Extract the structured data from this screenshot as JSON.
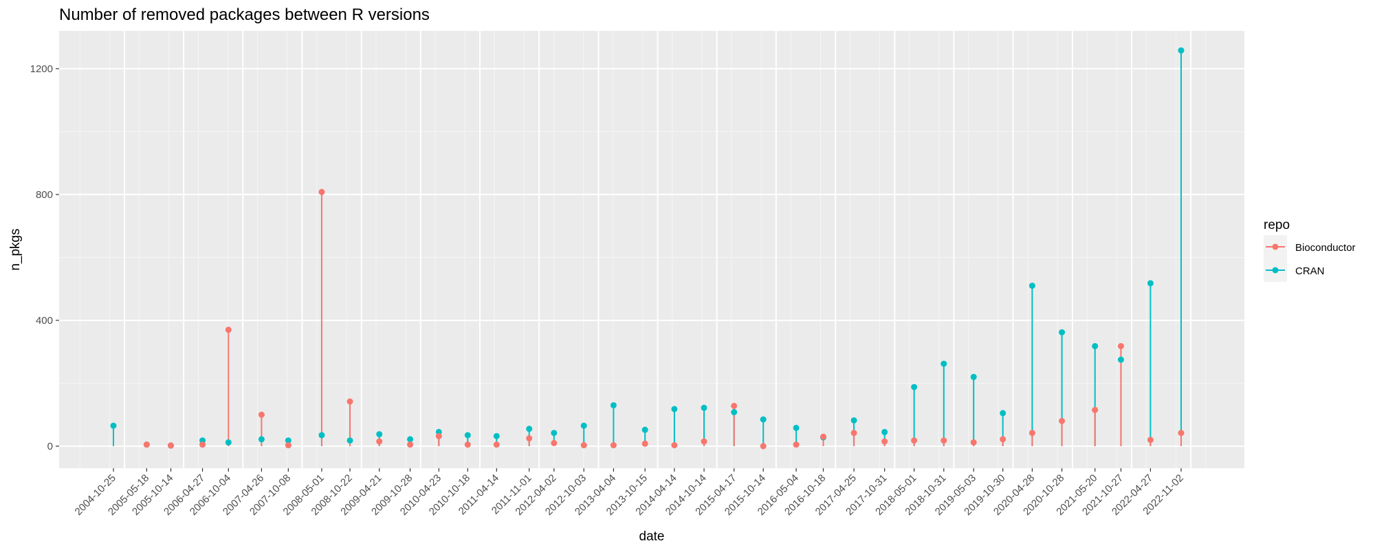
{
  "chart_data": {
    "type": "scatter",
    "variant": "lollipop",
    "title": "Number of removed packages between R versions",
    "xlabel": "date",
    "ylabel": "n_pkgs",
    "ylim": [
      -70,
      1320
    ],
    "yticks": [
      0,
      400,
      800,
      1200
    ],
    "grid": true,
    "legend": {
      "title": "repo",
      "placement": "right",
      "entries": [
        {
          "name": "Bioconductor",
          "color": "#F8766D"
        },
        {
          "name": "CRAN",
          "color": "#00BFC4"
        }
      ]
    },
    "x_gridline_dates": [
      "2004-04-01",
      "2004-10-01",
      "2005-04-01",
      "2005-10-01",
      "2006-04-01",
      "2006-10-01",
      "2007-04-01",
      "2007-10-01",
      "2008-04-01",
      "2008-10-01",
      "2009-04-01",
      "2009-10-01",
      "2010-04-01",
      "2010-10-01",
      "2011-04-01",
      "2011-10-01",
      "2012-04-01",
      "2012-10-01",
      "2013-04-01",
      "2013-10-01",
      "2014-04-01",
      "2014-10-01",
      "2015-04-01",
      "2015-10-01",
      "2016-04-01",
      "2016-10-01",
      "2017-04-01",
      "2017-10-01",
      "2018-04-01",
      "2018-10-01",
      "2019-04-01",
      "2019-10-01",
      "2020-04-01",
      "2020-10-01",
      "2021-04-01",
      "2021-10-01",
      "2022-04-01",
      "2022-10-01",
      "2023-04-01"
    ],
    "x_major_gridline_dates": [
      "2005-01-01",
      "2006-01-01",
      "2007-01-01",
      "2008-01-01",
      "2009-01-01",
      "2010-01-01",
      "2011-01-01",
      "2012-01-01",
      "2013-01-01",
      "2014-01-01",
      "2015-01-01",
      "2016-01-01",
      "2017-01-01",
      "2018-01-01",
      "2019-01-01",
      "2020-01-01",
      "2021-01-01",
      "2022-01-01",
      "2023-01-01"
    ],
    "categories": [
      "2004-10-25",
      "2005-05-18",
      "2005-10-14",
      "2006-04-27",
      "2006-10-04",
      "2007-04-26",
      "2007-10-08",
      "2008-05-01",
      "2008-10-22",
      "2009-04-21",
      "2009-10-28",
      "2010-04-23",
      "2010-10-18",
      "2011-04-14",
      "2011-11-01",
      "2012-04-02",
      "2012-10-03",
      "2013-04-04",
      "2013-10-15",
      "2014-04-14",
      "2014-10-14",
      "2015-04-17",
      "2015-10-14",
      "2016-05-04",
      "2016-10-18",
      "2017-04-25",
      "2017-10-31",
      "2018-05-01",
      "2018-10-31",
      "2019-05-03",
      "2019-10-30",
      "2020-04-28",
      "2020-10-28",
      "2021-05-20",
      "2021-10-27",
      "2022-04-27",
      "2022-11-02"
    ],
    "series": [
      {
        "name": "CRAN",
        "color": "#00BFC4",
        "values": [
          65,
          5,
          2,
          18,
          12,
          22,
          18,
          35,
          18,
          38,
          22,
          45,
          35,
          32,
          55,
          42,
          65,
          130,
          52,
          118,
          122,
          108,
          85,
          58,
          28,
          82,
          45,
          188,
          262,
          220,
          105,
          510,
          362,
          318,
          275,
          518,
          1258
        ]
      },
      {
        "name": "Bioconductor",
        "color": "#F8766D",
        "values": [
          null,
          5,
          2,
          5,
          370,
          100,
          3,
          808,
          142,
          15,
          5,
          32,
          5,
          5,
          25,
          10,
          3,
          3,
          8,
          3,
          15,
          128,
          0,
          5,
          30,
          42,
          15,
          18,
          18,
          12,
          22,
          42,
          80,
          115,
          318,
          20,
          42
        ]
      }
    ]
  }
}
